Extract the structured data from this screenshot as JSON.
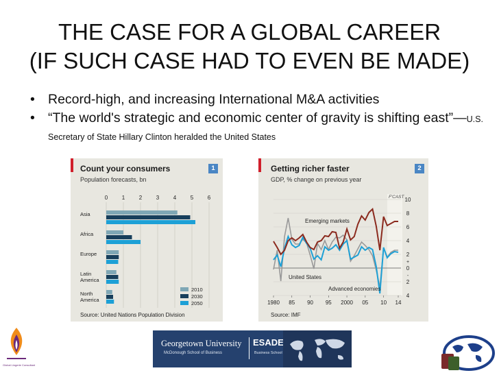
{
  "slide": {
    "title_line1": "THE CASE FOR A GLOBAL CAREER",
    "title_line2": "(IF SUCH CASE HAD TO EVEN BE MADE)",
    "bullets": [
      {
        "marker": "•",
        "text": "Record-high, and increasing International M&A activities"
      },
      {
        "marker": "•",
        "text_main": "“The world's strategic and economic center of gravity is shifting east”—",
        "text_small": "U.S. Secretary of State Hillary Clinton heralded the United States"
      }
    ]
  },
  "chart_data": [
    {
      "type": "bar",
      "title": "Count your consumers",
      "subtitle": "Population forecasts, bn",
      "badge": "1",
      "source": "Source: United Nations Population Division",
      "categories": [
        "Asia",
        "Africa",
        "Europe",
        "Latin America",
        "North America"
      ],
      "category_lines": [
        [
          "Asia"
        ],
        [
          "Africa"
        ],
        [
          "Europe"
        ],
        [
          "Latin",
          "America"
        ],
        [
          "North",
          "America"
        ]
      ],
      "xlim": [
        0,
        6
      ],
      "xticks": [
        "0",
        "1",
        "2",
        "3",
        "4",
        "5",
        "6"
      ],
      "series": [
        {
          "name": "2010",
          "color": "#7fa7b5",
          "values": [
            4.15,
            1.0,
            0.73,
            0.59,
            0.35
          ]
        },
        {
          "name": "2030",
          "color": "#173f5c",
          "values": [
            4.9,
            1.5,
            0.73,
            0.7,
            0.4
          ]
        },
        {
          "name": "2050",
          "color": "#1da0d6",
          "values": [
            5.2,
            2.0,
            0.7,
            0.73,
            0.45
          ]
        }
      ]
    },
    {
      "type": "line",
      "title": "Getting richer faster",
      "subtitle": "GDP, % change on previous year",
      "badge": "2",
      "source": "Source: IMF",
      "forecast_label": "F'CAST",
      "xticks": [
        "1980",
        "85",
        "90",
        "95",
        "2000",
        "05",
        "10",
        "14"
      ],
      "xtick_values": [
        1980,
        1985,
        1990,
        1995,
        2000,
        2005,
        2010,
        2014
      ],
      "xlim": [
        1980,
        2014
      ],
      "ylim": [
        -4,
        10
      ],
      "yticks": [
        "10",
        "8",
        "6",
        "4",
        "2",
        "+",
        "0",
        "-",
        "2",
        "4"
      ],
      "series": [
        {
          "name": "Emerging markets",
          "color": "#8b2a1e",
          "x": [
            1980,
            1981,
            1982,
            1983,
            1984,
            1985,
            1986,
            1987,
            1988,
            1989,
            1990,
            1991,
            1992,
            1993,
            1994,
            1995,
            1996,
            1997,
            1998,
            1999,
            2000,
            2001,
            2002,
            2003,
            2004,
            2005,
            2006,
            2007,
            2008,
            2009,
            2010,
            2011,
            2012,
            2013,
            2014
          ],
          "values": [
            3.9,
            3.0,
            2.0,
            2.6,
            4.0,
            4.4,
            4.0,
            4.4,
            4.9,
            3.8,
            3.0,
            2.7,
            3.8,
            4.0,
            4.7,
            4.6,
            5.3,
            5.2,
            2.9,
            3.8,
            5.7,
            4.1,
            4.6,
            6.4,
            7.6,
            7.0,
            8.1,
            8.6,
            6.1,
            2.6,
            7.5,
            6.2,
            6.5,
            6.8,
            6.8
          ]
        },
        {
          "name": "United States",
          "color": "#999999",
          "x": [
            1980,
            1981,
            1982,
            1983,
            1984,
            1985,
            1986,
            1987,
            1988,
            1989,
            1990,
            1991,
            1992,
            1993,
            1994,
            1995,
            1996,
            1997,
            1998,
            1999,
            2000,
            2001,
            2002,
            2003,
            2004,
            2005,
            2006,
            2007,
            2008,
            2009,
            2010,
            2011,
            2012,
            2013,
            2014
          ],
          "values": [
            -0.2,
            2.6,
            -1.9,
            4.6,
            7.3,
            4.2,
            3.5,
            3.5,
            4.2,
            3.7,
            1.9,
            -0.1,
            3.6,
            2.7,
            4.0,
            2.7,
            3.8,
            4.5,
            4.4,
            4.8,
            4.1,
            1.0,
            1.8,
            2.8,
            3.8,
            3.3,
            2.7,
            1.8,
            -0.3,
            -2.8,
            2.9,
            1.6,
            2.3,
            2.6,
            2.6
          ]
        },
        {
          "name": "Advanced economies",
          "color": "#1da0d6",
          "x": [
            1980,
            1981,
            1982,
            1983,
            1984,
            1985,
            1986,
            1987,
            1988,
            1989,
            1990,
            1991,
            1992,
            1993,
            1994,
            1995,
            1996,
            1997,
            1998,
            1999,
            2000,
            2001,
            2002,
            2003,
            2004,
            2005,
            2006,
            2007,
            2008,
            2009,
            2010,
            2011,
            2012,
            2013,
            2014
          ],
          "values": [
            1.2,
            1.9,
            0.2,
            2.9,
            4.6,
            3.4,
            3.0,
            3.3,
            4.5,
            3.6,
            2.9,
            1.3,
            1.8,
            1.2,
            3.1,
            2.6,
            2.9,
            3.4,
            2.6,
            3.5,
            4.0,
            1.3,
            1.6,
            1.9,
            3.1,
            2.6,
            3.0,
            2.7,
            0.2,
            -3.7,
            3.0,
            1.5,
            2.1,
            2.4,
            2.3
          ]
        }
      ],
      "labels": {
        "emerging": "Emerging markets",
        "us": "United States",
        "advanced": "Advanced economies"
      }
    }
  ],
  "footer": {
    "university": "Georgetown University",
    "school": "McDonough School of Business",
    "esade": "ESADE",
    "esade_sub": "Business School",
    "left_logo_text": "Global Lingerie Consultant"
  },
  "colors": {
    "chart_bg": "#e8e7e0",
    "badge": "#4a86c4",
    "red_tab": "#d01f2b",
    "footer_blue": "#2d4b7a"
  }
}
